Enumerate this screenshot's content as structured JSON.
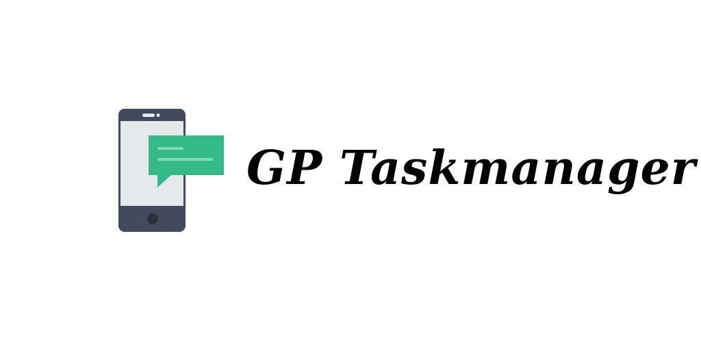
{
  "app": {
    "title": "GP Taskmanager"
  },
  "logo": {
    "icon": "phone-with-chat-bubble",
    "colors": {
      "phone_body": "#434a5e",
      "phone_screen": "#e6e9ec",
      "bubble": "#35b98b",
      "bubble_lines": "#7fdcbb"
    }
  },
  "background_color": "#ffffff"
}
